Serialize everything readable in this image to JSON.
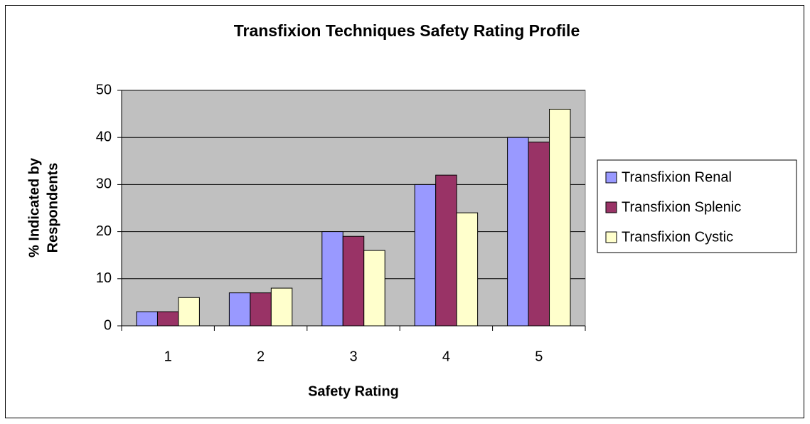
{
  "chart_data": {
    "type": "bar",
    "title": "Transfixion Techniques Safety Rating Profile",
    "x_label": "Safety Rating",
    "y_label_lines": [
      "% Indicated by",
      "Respondents"
    ],
    "categories": [
      "1",
      "2",
      "3",
      "4",
      "5"
    ],
    "series": [
      {
        "name": "Transfixion Renal",
        "color": "#9999ff",
        "values": [
          3,
          7,
          20,
          30,
          40
        ]
      },
      {
        "name": "Transfixion Splenic",
        "color": "#993366",
        "values": [
          3,
          7,
          19,
          32,
          39
        ]
      },
      {
        "name": "Transfixion Cystic",
        "color": "#ffffcc",
        "values": [
          6,
          8,
          16,
          24,
          46
        ]
      }
    ],
    "ylim": [
      0,
      50
    ],
    "yticks": [
      0,
      10,
      20,
      30,
      40,
      50
    ],
    "grid": true,
    "plot_background": "#c0c0c0",
    "legend": "right"
  }
}
